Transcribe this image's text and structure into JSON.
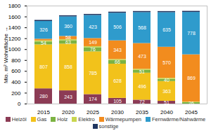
{
  "chart_data": {
    "type": "bar",
    "stacked": true,
    "data_labels": true,
    "grid": false,
    "legend": "bottom",
    "y_label": "Mio. m² Wohnfläche",
    "categories": [
      "2015",
      "2020",
      "2025",
      "2030",
      "2035",
      "2040",
      "2045"
    ],
    "ylim": [
      0,
      1800
    ],
    "yticks": [
      0,
      200,
      400,
      600,
      800,
      1000,
      1200,
      1400,
      1600,
      1800
    ],
    "series": [
      {
        "name": "Heizöl",
        "color": "#8c3b55",
        "values": [
          280,
          243,
          174,
          105,
          72,
          51,
          0
        ],
        "value_labels": [
          "280",
          "243",
          "174",
          "105",
          "72",
          "51",
          null
        ]
      },
      {
        "name": "Gas",
        "color": "#f2c21b",
        "values": [
          807,
          858,
          785,
          628,
          496,
          363,
          0
        ],
        "value_labels": [
          "807",
          "858",
          "785",
          "628",
          "496",
          "363",
          null
        ]
      },
      {
        "name": "Holz",
        "color": "#7cb342",
        "values": [
          54,
          63,
          76,
          66,
          51,
          40,
          26
        ],
        "value_labels": [
          "54",
          "63",
          "76",
          "66",
          "51",
          "40",
          "26"
        ]
      },
      {
        "name": "Elektro",
        "color": "#c9d64f",
        "values": [
          20,
          20,
          20,
          20,
          20,
          20,
          10
        ],
        "value_labels": [
          null,
          null,
          null,
          null,
          null,
          null,
          null
        ]
      },
      {
        "name": "Wärmepumpen",
        "color": "#f28c1e",
        "values": [
          30,
          58,
          149,
          343,
          473,
          570,
          869
        ],
        "value_labels": [
          null,
          "58",
          "149",
          "343",
          "473",
          "570",
          "869"
        ]
      },
      {
        "name": "Fernwärme/Nahwärme",
        "color": "#2f9bcc",
        "values": [
          326,
          360,
          423,
          506,
          568,
          635,
          778
        ],
        "value_labels": [
          "326",
          "360",
          "423",
          "506",
          "568",
          "635",
          "778"
        ]
      },
      {
        "name": "sonstige",
        "color": "#1f3560",
        "values": [
          20,
          20,
          20,
          20,
          20,
          20,
          20
        ],
        "value_labels": [
          null,
          null,
          null,
          null,
          null,
          null,
          null
        ]
      }
    ]
  }
}
